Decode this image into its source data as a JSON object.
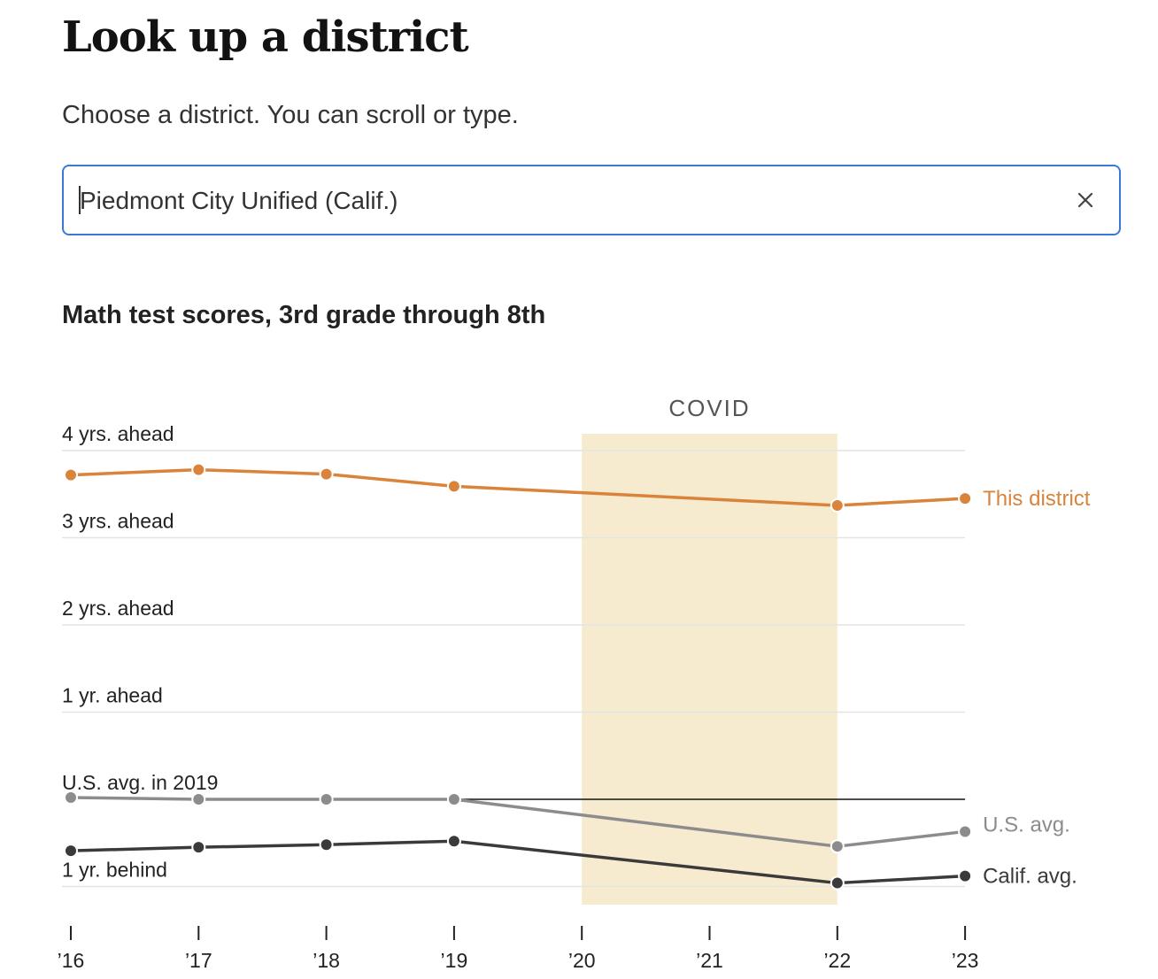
{
  "header": {
    "title": "Look up a district",
    "instructions": "Choose a district. You can scroll or type."
  },
  "district_select": {
    "value": "Piedmont City Unified (Calif.)",
    "clear_icon": "close-icon"
  },
  "chart_data": {
    "type": "line",
    "title": "Math test scores, 3rd grade through 8th",
    "x_ticks": [
      "’16",
      "’17",
      "’18",
      "’19",
      "’20",
      "’21",
      "’22",
      "’23"
    ],
    "y_ticks": [
      {
        "value": 4,
        "label": "4 yrs. ahead"
      },
      {
        "value": 3,
        "label": "3 yrs. ahead"
      },
      {
        "value": 2,
        "label": "2 yrs. ahead"
      },
      {
        "value": 1,
        "label": "1 yr. ahead"
      },
      {
        "value": 0,
        "label": "U.S. avg. in 2019"
      },
      {
        "value": -1,
        "label": "1 yr. behind"
      }
    ],
    "ylim": [
      -1.2,
      4.2
    ],
    "reference_line": {
      "value": 0,
      "from": "’19",
      "to": "’23"
    },
    "shaded_region": {
      "label": "COVID",
      "from": "’20",
      "to": "’22",
      "color": "#f6ebcf"
    },
    "series": [
      {
        "name": "This district",
        "color": "#d9833b",
        "points": [
          [
            "’16",
            3.72
          ],
          [
            "’17",
            3.78
          ],
          [
            "’18",
            3.73
          ],
          [
            "’19",
            3.59
          ],
          [
            "’22",
            3.37
          ],
          [
            "’23",
            3.45
          ]
        ]
      },
      {
        "name": "U.S. avg.",
        "color": "#8c8c8c",
        "points": [
          [
            "’16",
            0.02
          ],
          [
            "’17",
            0.0
          ],
          [
            "’18",
            0.0
          ],
          [
            "’19",
            0.0
          ],
          [
            "’22",
            -0.54
          ],
          [
            "’23",
            -0.37
          ]
        ]
      },
      {
        "name": "Calif. avg.",
        "color": "#3a3a3a",
        "points": [
          [
            "’16",
            -0.59
          ],
          [
            "’17",
            -0.55
          ],
          [
            "’18",
            -0.52
          ],
          [
            "’19",
            -0.48
          ],
          [
            "’22",
            -0.96
          ],
          [
            "’23",
            -0.88
          ]
        ]
      }
    ],
    "grid": true
  }
}
